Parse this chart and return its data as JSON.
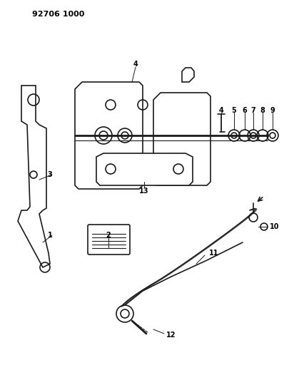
{
  "title": "92706 1000",
  "bg_color": "#ffffff",
  "line_color": "#1a1a1a",
  "label_color": "#000000",
  "part_numbers": [
    "1",
    "2",
    "3",
    "4",
    "5",
    "6",
    "7",
    "8",
    "9",
    "10",
    "11",
    "12",
    "13"
  ],
  "fig_width": 4.05,
  "fig_height": 5.33,
  "dpi": 100
}
